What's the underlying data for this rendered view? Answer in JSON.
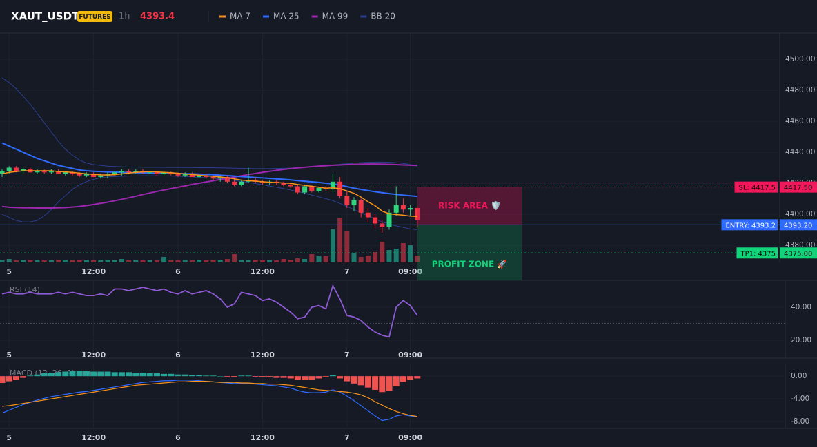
{
  "chart_data": {
    "type": "candlestick",
    "symbol": "XAUT_USDT",
    "badge": "FUTURES",
    "interval": "1h",
    "last_price": "4393.4",
    "indicators": [
      {
        "name": "MA 7",
        "color": "#f7931a"
      },
      {
        "name": "MA 25",
        "color": "#2f6bff"
      },
      {
        "name": "MA 99",
        "color": "#9c27b0"
      },
      {
        "name": "BB 20",
        "color": "#2a3f8f"
      }
    ],
    "up_color": "#2ed47a",
    "down_color": "#f23645",
    "vol_up_color": "#1e7a6c",
    "vol_down_color": "#8e2b3a",
    "xticks": [
      {
        "value": 1,
        "label": "5"
      },
      {
        "value": 13,
        "label": "12:00"
      },
      {
        "value": 25,
        "label": "6"
      },
      {
        "value": 37,
        "label": "12:00"
      },
      {
        "value": 49,
        "label": "7"
      },
      {
        "value": 58,
        "label": "09:00"
      }
    ],
    "ylim": [
      4368.9,
      4516.9
    ],
    "yticks": [
      {
        "value": 4500,
        "label": "4500.00"
      },
      {
        "value": 4480,
        "label": "4480.00"
      },
      {
        "value": 4460,
        "label": "4460.00"
      },
      {
        "value": 4440,
        "label": "4440.00"
      },
      {
        "value": 4420,
        "label": "4420.00"
      },
      {
        "value": 4400,
        "label": "4400.00"
      },
      {
        "value": 4380,
        "label": "4380.00"
      }
    ],
    "candles": [
      [
        4426,
        4429,
        4424,
        4428
      ],
      [
        4428,
        4431,
        4426,
        4430
      ],
      [
        4430,
        4431,
        4427,
        4428
      ],
      [
        4428,
        4430,
        4426,
        4429
      ],
      [
        4429,
        4430,
        4427,
        4427
      ],
      [
        4427,
        4429,
        4426,
        4428
      ],
      [
        4428,
        4429,
        4426,
        4427
      ],
      [
        4427,
        4429,
        4426,
        4428
      ],
      [
        4428,
        4429,
        4426,
        4426
      ],
      [
        4426,
        4428,
        4425,
        4427
      ],
      [
        4427,
        4428,
        4425,
        4426
      ],
      [
        4426,
        4427,
        4424,
        4425
      ],
      [
        4425,
        4427,
        4424,
        4426
      ],
      [
        4426,
        4427,
        4424,
        4424
      ],
      [
        4424,
        4426,
        4423,
        4425
      ],
      [
        4425,
        4427,
        4423,
        4426
      ],
      [
        4426,
        4428,
        4425,
        4427
      ],
      [
        4427,
        4429,
        4425,
        4428
      ],
      [
        4428,
        4429,
        4426,
        4427
      ],
      [
        4427,
        4429,
        4426,
        4428
      ],
      [
        4428,
        4429,
        4426,
        4427
      ],
      [
        4427,
        4428,
        4426,
        4427
      ],
      [
        4427,
        4428,
        4425,
        4426
      ],
      [
        4426,
        4428,
        4425,
        4427
      ],
      [
        4427,
        4428,
        4425,
        4426
      ],
      [
        4426,
        4427,
        4424,
        4425
      ],
      [
        4425,
        4427,
        4424,
        4426
      ],
      [
        4426,
        4427,
        4424,
        4424
      ],
      [
        4424,
        4426,
        4423,
        4425
      ],
      [
        4425,
        4426,
        4423,
        4424
      ],
      [
        4424,
        4425,
        4422,
        4423
      ],
      [
        4423,
        4425,
        4421,
        4424
      ],
      [
        4424,
        4425,
        4420,
        4421
      ],
      [
        4421,
        4423,
        4418,
        4419
      ],
      [
        4419,
        4422,
        4418,
        4421
      ],
      [
        4421,
        4430,
        4420,
        4422
      ],
      [
        4422,
        4424,
        4420,
        4421
      ],
      [
        4421,
        4422,
        4419,
        4420
      ],
      [
        4420,
        4422,
        4419,
        4421
      ],
      [
        4421,
        4422,
        4419,
        4420
      ],
      [
        4420,
        4421,
        4418,
        4419
      ],
      [
        4419,
        4420,
        4417,
        4418
      ],
      [
        4418,
        4419,
        4413,
        4414
      ],
      [
        4414,
        4419,
        4413,
        4418
      ],
      [
        4418,
        4419,
        4414,
        4415
      ],
      [
        4415,
        4418,
        4414,
        4417
      ],
      [
        4417,
        4418,
        4415,
        4416
      ],
      [
        4416,
        4426,
        4414,
        4421
      ],
      [
        4421,
        4424,
        4410,
        4412
      ],
      [
        4412,
        4415,
        4404,
        4406
      ],
      [
        4406,
        4411,
        4402,
        4409
      ],
      [
        4409,
        4410,
        4398,
        4401
      ],
      [
        4401,
        4404,
        4395,
        4398
      ],
      [
        4398,
        4400,
        4391,
        4394
      ],
      [
        4394,
        4396,
        4388,
        4392
      ],
      [
        4392,
        4403,
        4390,
        4401
      ],
      [
        4401,
        4418,
        4399,
        4406
      ],
      [
        4406,
        4410,
        4401,
        4403
      ],
      [
        4403,
        4406,
        4399,
        4404
      ],
      [
        4404,
        4405,
        4392,
        4396
      ]
    ],
    "vlim": [
      0,
      100
    ],
    "volume": [
      4,
      5,
      3,
      4,
      3,
      4,
      3,
      3,
      4,
      3,
      4,
      3,
      4,
      3,
      4,
      3,
      4,
      5,
      3,
      4,
      3,
      4,
      3,
      8,
      4,
      3,
      4,
      3,
      4,
      3,
      4,
      3,
      5,
      12,
      4,
      3,
      4,
      3,
      4,
      3,
      5,
      4,
      6,
      5,
      12,
      10,
      9,
      48,
      65,
      45,
      14,
      8,
      10,
      15,
      30,
      18,
      20,
      28,
      25,
      10
    ],
    "ma7": [
      4426,
      4427,
      4427.5,
      4428,
      4428,
      4428,
      4428,
      4428,
      4427.5,
      4427.3,
      4427,
      4426.5,
      4426,
      4425.7,
      4425.4,
      4425.3,
      4425.5,
      4426,
      4426.5,
      4427,
      4427.3,
      4427.5,
      4427.3,
      4427,
      4426.8,
      4426.4,
      4426,
      4425.6,
      4425.2,
      4424.8,
      4424.4,
      4424,
      4423.5,
      4422.8,
      4422,
      4421.6,
      4421.3,
      4421,
      4420.6,
      4420.4,
      4420.2,
      4419.9,
      4419.2,
      4418.6,
      4418,
      4417.4,
      4416.8,
      4417,
      4416.5,
      4415,
      4413.5,
      4411,
      4408,
      4405.5,
      4402,
      4400.3,
      4399.8,
      4399.4,
      4398.8,
      4398.5
    ],
    "ma25": [
      4446,
      4444,
      4442,
      4440,
      4438,
      4436,
      4434.5,
      4433,
      4431.5,
      4430.5,
      4429.5,
      4428.5,
      4428,
      4427.7,
      4427.5,
      4427.3,
      4427.2,
      4427,
      4426.9,
      4426.8,
      4426.7,
      4426.6,
      4426.5,
      4426.4,
      4426.3,
      4426.2,
      4426.1,
      4426,
      4425.9,
      4425.7,
      4425.5,
      4425.2,
      4424.9,
      4424.6,
      4424.3,
      4424,
      4423.7,
      4423.4,
      4423.1,
      4422.8,
      4422.5,
      4422.1,
      4421.7,
      4421.3,
      4420.9,
      4420.5,
      4420,
      4419.6,
      4418.8,
      4417.8,
      4416.8,
      4416,
      4415.2,
      4414.5,
      4413.9,
      4413.3,
      4412.8,
      4412.3,
      4411.9,
      4411.5
    ],
    "ma99": [
      4405,
      4404.5,
      4404.3,
      4404.2,
      4404.1,
      4404,
      4404,
      4404,
      4404.1,
      4404.3,
      4404.6,
      4405,
      4405.6,
      4406.3,
      4407,
      4407.8,
      4408.7,
      4409.6,
      4410.6,
      4411.6,
      4412.7,
      4413.7,
      4414.7,
      4415.6,
      4416.5,
      4417.4,
      4418.3,
      4419.2,
      4420,
      4420.8,
      4421.6,
      4422.4,
      4423.2,
      4424,
      4424.8,
      4425.6,
      4426.3,
      4427,
      4427.7,
      4428.3,
      4428.9,
      4429.4,
      4429.9,
      4430.3,
      4430.7,
      4431,
      4431.3,
      4431.6,
      4431.8,
      4432,
      4432.2,
      4432.3,
      4432.4,
      4432.4,
      4432.3,
      4432.2,
      4432,
      4431.8,
      4431.6,
      4431.5
    ],
    "bb_upper": [
      4488,
      4485,
      4481,
      4476,
      4471,
      4465,
      4459,
      4453,
      4447,
      4442,
      4438,
      4435,
      4433,
      4432,
      4431.5,
      4431,
      4430.8,
      4430.6,
      4430.5,
      4430.4,
      4430.3,
      4430.3,
      4430.3,
      4430.2,
      4430.2,
      4430.2,
      4430.1,
      4430.1,
      4430,
      4430,
      4430,
      4429.9,
      4429.8,
      4429.7,
      4429.6,
      4429.5,
      4429.4,
      4429.4,
      4429.4,
      4429.5,
      4429.6,
      4429.8,
      4430,
      4430.3,
      4430.6,
      4431,
      4431.4,
      4431.8,
      4432.2,
      4432.6,
      4433,
      4433.3,
      4433.5,
      4433.6,
      4433.6,
      4433.5,
      4433.3,
      4432.8,
      4432,
      4431
    ],
    "bb_lower": [
      4400,
      4398,
      4396,
      4395,
      4395,
      4396,
      4399,
      4403,
      4408,
      4412,
      4416,
      4419,
      4421,
      4422.5,
      4423.5,
      4424,
      4424.3,
      4424.5,
      4424.6,
      4424.7,
      4424.8,
      4424.8,
      4424.8,
      4424.7,
      4424.6,
      4424.5,
      4424.3,
      4424.1,
      4423.8,
      4423.5,
      4423.2,
      4422.8,
      4422.3,
      4421.8,
      4421.2,
      4420.5,
      4419.8,
      4419,
      4418.2,
      4417.4,
      4416.5,
      4415.6,
      4414.6,
      4413.5,
      4412.4,
      4411.2,
      4410,
      4408.8,
      4407,
      4405,
      4403,
      4401,
      4399,
      4397,
      4395,
      4393.5,
      4392.5,
      4391.5,
      4390.5,
      4390
    ],
    "levels": [
      {
        "label": "SL: 4417.5",
        "value": 4417.5,
        "price_label": "4417.50",
        "color": "#f0185a"
      },
      {
        "label": "ENTRY: 4393.2",
        "value": 4393.2,
        "price_label": "4393.20",
        "color": "#2f6bff"
      },
      {
        "label": "TP1: 4375",
        "value": 4375,
        "price_label": "4375.00",
        "color": "#11d47a"
      }
    ],
    "risk_label": "RISK AREA 🛡️",
    "profit_label": "PROFIT ZONE 🚀",
    "rsi": {
      "title": "RSI (14)",
      "color": "#8e5ad6",
      "ylim": [
        9.2,
        55.8
      ],
      "yticks": [
        {
          "value": 40,
          "label": "40.00"
        },
        {
          "value": 20,
          "label": "20.00"
        }
      ],
      "guide": 30,
      "values": [
        48,
        49,
        48,
        48,
        49,
        48,
        48,
        48,
        49,
        48,
        49,
        48,
        47,
        47,
        48,
        47,
        51,
        51,
        50,
        51,
        52,
        51,
        50,
        51,
        49,
        48,
        50,
        48,
        49,
        50,
        48,
        45,
        40,
        42,
        49,
        48,
        47,
        44,
        45,
        43,
        40,
        37,
        33,
        34,
        40,
        41,
        39,
        53,
        45,
        35,
        34,
        32,
        28,
        25,
        23,
        22,
        40,
        44,
        41,
        35
      ]
    },
    "macd": {
      "title": "MACD (12, 26, 9)",
      "ylim": [
        -9.2,
        2.2
      ],
      "yticks": [
        {
          "value": 0,
          "label": "0.00"
        },
        {
          "value": -4,
          "label": "-4.00"
        },
        {
          "value": -8,
          "label": "-8.00"
        }
      ],
      "line_color": "#2f6bff",
      "signal_color": "#f7931a",
      "pos_color": "#26a69a",
      "neg_color": "#ef5350",
      "histogram": [
        -1.2,
        -0.9,
        -0.6,
        -0.3,
        0.1,
        0.3,
        0.5,
        0.6,
        0.7,
        0.8,
        0.9,
        0.9,
        0.9,
        0.8,
        0.8,
        0.8,
        0.7,
        0.7,
        0.7,
        0.6,
        0.6,
        0.5,
        0.5,
        0.4,
        0.4,
        0.3,
        0.3,
        0.2,
        0.2,
        0.1,
        0.1,
        0,
        -0.1,
        -0.2,
        0.1,
        0.1,
        -0.1,
        -0.2,
        -0.2,
        -0.3,
        -0.3,
        -0.4,
        -0.6,
        -0.7,
        -0.6,
        -0.4,
        -0.2,
        0.2,
        -0.4,
        -0.9,
        -1.3,
        -1.6,
        -2,
        -2.4,
        -2.8,
        -2.6,
        -1.8,
        -1,
        -0.6,
        -0.4
      ],
      "line": [
        -6.5,
        -6,
        -5.5,
        -5,
        -4.6,
        -4.2,
        -3.9,
        -3.6,
        -3.4,
        -3.2,
        -3,
        -2.8,
        -2.7,
        -2.5,
        -2.3,
        -2.1,
        -1.9,
        -1.7,
        -1.5,
        -1.3,
        -1.1,
        -1,
        -0.9,
        -0.8,
        -0.8,
        -0.7,
        -0.7,
        -0.7,
        -0.8,
        -0.9,
        -1,
        -1.1,
        -1.2,
        -1.3,
        -1.3,
        -1.3,
        -1.4,
        -1.5,
        -1.6,
        -1.7,
        -1.9,
        -2.1,
        -2.5,
        -2.8,
        -2.9,
        -2.9,
        -2.8,
        -2.4,
        -2.8,
        -3.5,
        -4.3,
        -5.2,
        -6.1,
        -7,
        -7.8,
        -7.6,
        -7,
        -6.8,
        -7,
        -7.2
      ],
      "signal": [
        -5.3,
        -5.2,
        -5,
        -4.8,
        -4.6,
        -4.4,
        -4.2,
        -4,
        -3.8,
        -3.6,
        -3.4,
        -3.2,
        -3,
        -2.8,
        -2.6,
        -2.4,
        -2.2,
        -2,
        -1.8,
        -1.6,
        -1.5,
        -1.4,
        -1.3,
        -1.2,
        -1.1,
        -1,
        -1,
        -0.9,
        -0.9,
        -0.9,
        -1,
        -1.1,
        -1.1,
        -1.1,
        -1.2,
        -1.2,
        -1.3,
        -1.3,
        -1.4,
        -1.4,
        -1.5,
        -1.6,
        -1.8,
        -2,
        -2.2,
        -2.4,
        -2.5,
        -2.6,
        -2.7,
        -2.8,
        -3,
        -3.3,
        -3.8,
        -4.5,
        -5.1,
        -5.7,
        -6.2,
        -6.6,
        -6.9,
        -7.1
      ]
    }
  }
}
